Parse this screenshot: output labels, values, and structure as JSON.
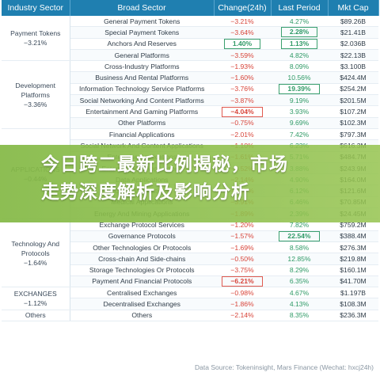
{
  "columns": [
    "Industry Sector",
    "Broad Sector",
    "Change(24h)",
    "Last Period",
    "Mkt Cap"
  ],
  "groups": [
    {
      "sector": "Payment Tokens",
      "change": "−3.21%",
      "rows": [
        {
          "name": "General Payment Tokens",
          "change": "−3.21%",
          "last": "4.27%",
          "cap": "$89.26B"
        },
        {
          "name": "Special Payment Tokens",
          "change": "−3.64%",
          "last": "2.28%",
          "cap": "$21.41B"
        },
        {
          "name": "Anchors And Reserves",
          "change": "1.40%",
          "last": "1.13%",
          "cap": "$2.036B"
        },
        {
          "name": "General Platforms",
          "change": "−3.59%",
          "last": "4.82%",
          "cap": "$22.13B"
        }
      ]
    },
    {
      "sector": "Development Platforms",
      "change": "−3.36%",
      "rows": [
        {
          "name": "Cross-Industry Platforms",
          "change": "−1.93%",
          "last": "8.09%",
          "cap": "$3.100B"
        },
        {
          "name": "Business And Rental Platforms",
          "change": "−1.60%",
          "last": "10.56%",
          "cap": "$424.4M"
        },
        {
          "name": "Information Technology Service Platforms",
          "change": "−3.76%",
          "last": "19.39%",
          "cap": "$254.2M"
        },
        {
          "name": "Social Networking And Content Platforms",
          "change": "−3.87%",
          "last": "9.19%",
          "cap": "$201.5M"
        },
        {
          "name": "Entertainment And Gaming Platforms",
          "change": "−4.04%",
          "last": "3.93%",
          "cap": "$107.2M"
        },
        {
          "name": "Other Platforms",
          "change": "−0.75%",
          "last": "9.69%",
          "cap": "$102.3M"
        }
      ]
    },
    {
      "sector": "APPLICATIONS",
      "change": "−0.44%",
      "rows": [
        {
          "name": "Financial Applications",
          "change": "−2.01%",
          "last": "7.42%",
          "cap": "$797.3M"
        },
        {
          "name": "Social Network And Content Applications",
          "change": "−1.10%",
          "last": "6.23%",
          "cap": "$616.3M"
        },
        {
          "name": "Enterprise Applications",
          "change": "−1.61%",
          "last": "5.71%",
          "cap": "$484.7M"
        },
        {
          "name": "Entertainment Applications",
          "change": "−3.52%",
          "last": "3.88%",
          "cap": "$243.9M"
        },
        {
          "name": "Data Applications",
          "change": "−2.14%",
          "last": "4.90%",
          "cap": "$164.0M"
        },
        {
          "name": "Other Applications",
          "change": "−0.67%",
          "last": "6.12%",
          "cap": "$121.6M"
        },
        {
          "name": "Medical Applications",
          "change": "−3.91%",
          "last": "6.46%",
          "cap": "$70.85M"
        },
        {
          "name": "Energy And Mining Applications",
          "change": "−1.89%",
          "last": "2.39%",
          "cap": "$24.45M"
        }
      ]
    },
    {
      "sector": "Technology And Protocols",
      "change": "−1.64%",
      "rows": [
        {
          "name": "Exchange Protocol Services",
          "change": "−1.20%",
          "last": "7.82%",
          "cap": "$759.2M"
        },
        {
          "name": "Governance Protocols",
          "change": "−1.57%",
          "last": "22.54%",
          "cap": "$388.4M"
        },
        {
          "name": "Other Technologies Or Protocols",
          "change": "−1.69%",
          "last": "8.58%",
          "cap": "$276.3M"
        },
        {
          "name": "Cross-chain And Side-chains",
          "change": "−0.50%",
          "last": "12.85%",
          "cap": "$219.8M"
        },
        {
          "name": "Storage Technologies Or Protocols",
          "change": "−3.75%",
          "last": "8.29%",
          "cap": "$160.1M"
        },
        {
          "name": "Payment And Financial Protocols",
          "change": "−6.21%",
          "last": "6.35%",
          "cap": "$41.70M"
        }
      ]
    },
    {
      "sector": "EXCHANGES",
      "change": "−1.12%",
      "rows": [
        {
          "name": "Centralised Exchanges",
          "change": "−0.98%",
          "last": "4.67%",
          "cap": "$1.197B"
        },
        {
          "name": "Decentralised Exchanges",
          "change": "−1.86%",
          "last": "4.13%",
          "cap": "$108.3M"
        }
      ]
    },
    {
      "sector": "Others",
      "change": "",
      "rows": [
        {
          "name": "Others",
          "change": "−2.14%",
          "last": "8.35%",
          "cap": "$236.3M"
        }
      ]
    }
  ],
  "highlight_change": [
    "Anchors And Reserves",
    "Entertainment And Gaming Platforms",
    "Payment And Financial Protocols"
  ],
  "highlight_last": [
    "Special Payment Tokens",
    "Anchors And Reserves",
    "Information Technology Service Platforms",
    "Governance Protocols"
  ],
  "source": "Data Source: Tokeninsight, Mars Finance (Wechat: hxcj24h)",
  "banner": {
    "line1": "今日跨二最新比例揭秘，市场",
    "line2": "走势深度解析及影响分析"
  },
  "colors": {
    "header": "#1f7fb0",
    "negative": "#d8453a",
    "positive": "#2f9a66",
    "banner": "#8cbd4a"
  }
}
